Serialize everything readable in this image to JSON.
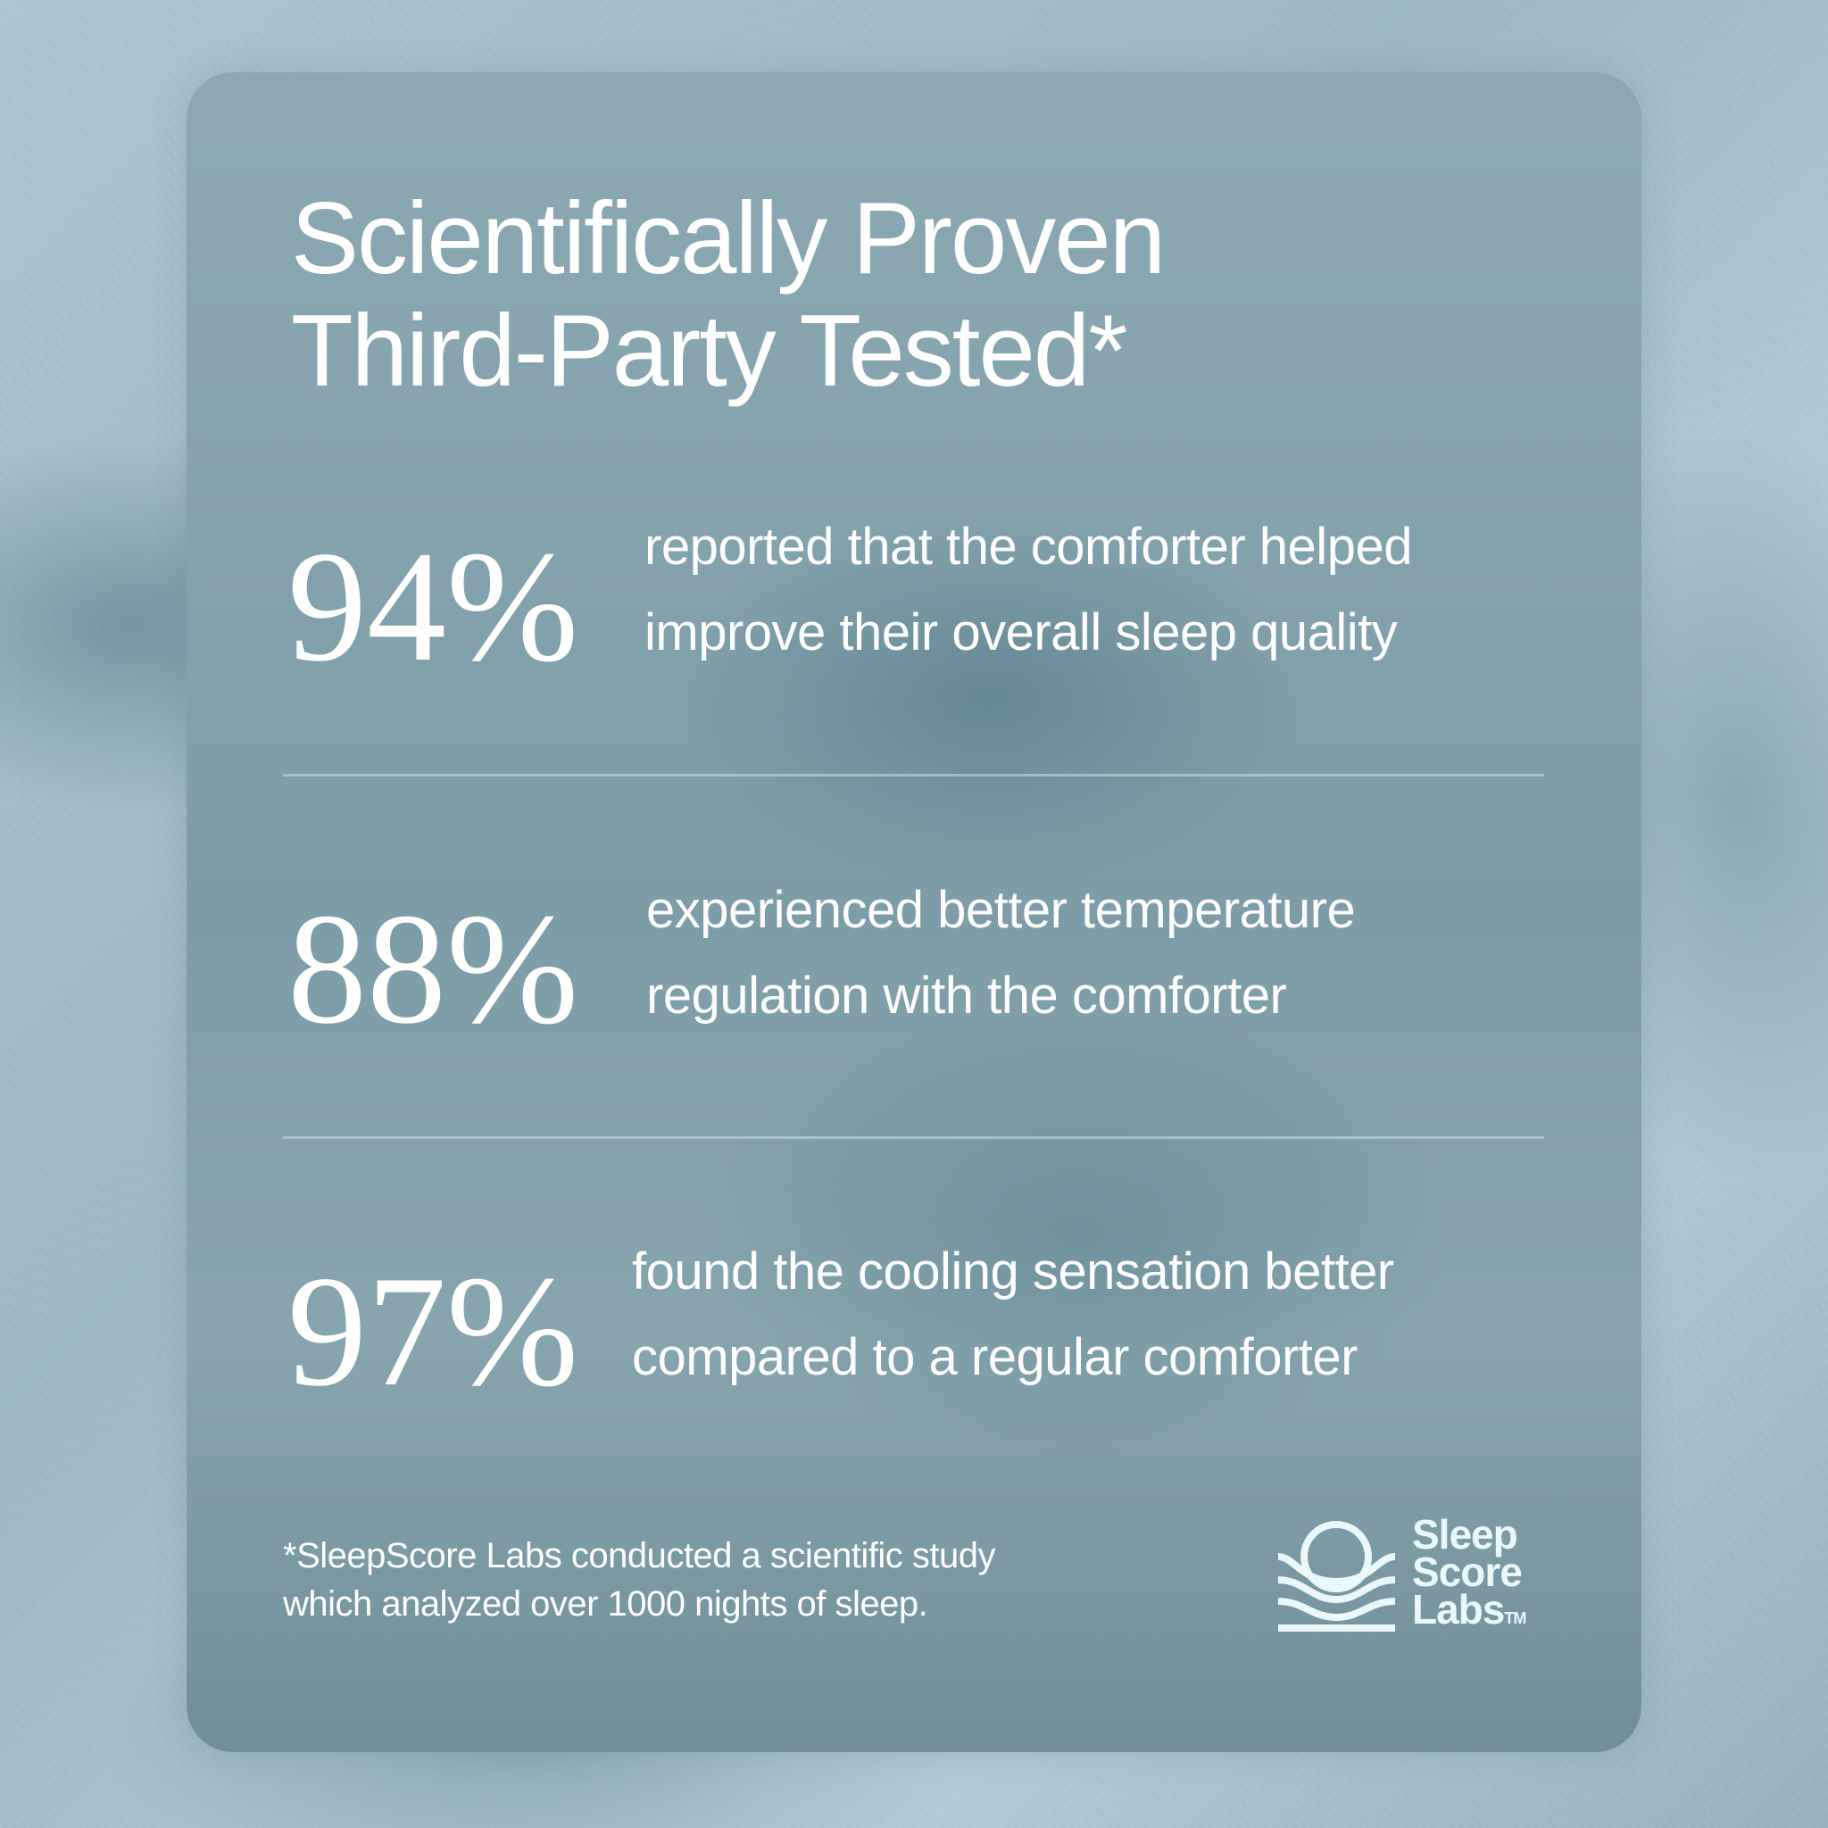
{
  "title_lines": [
    "Scientifically Proven",
    "Third-Party Tested*"
  ],
  "stats": [
    {
      "value": "94%",
      "lines": [
        "reported that the comforter helped",
        "improve their overall sleep quality"
      ]
    },
    {
      "value": "88%",
      "lines": [
        "experienced better temperature",
        "regulation with the comforter"
      ]
    },
    {
      "value": "97%",
      "lines": [
        "found the cooling sensation better",
        "compared to a regular comforter"
      ]
    }
  ],
  "footnote": [
    "*SleepScore Labs conducted a scientific study",
    "which analyzed over 1000 nights of sleep."
  ],
  "logo": {
    "icon": "sun-over-waves-icon",
    "lines": [
      "Sleep",
      "Score",
      "Labs"
    ],
    "tm": "TM"
  },
  "colors": {
    "card": "#7f9ea8",
    "background": "#a3c1cb",
    "text": "#ffffff"
  }
}
